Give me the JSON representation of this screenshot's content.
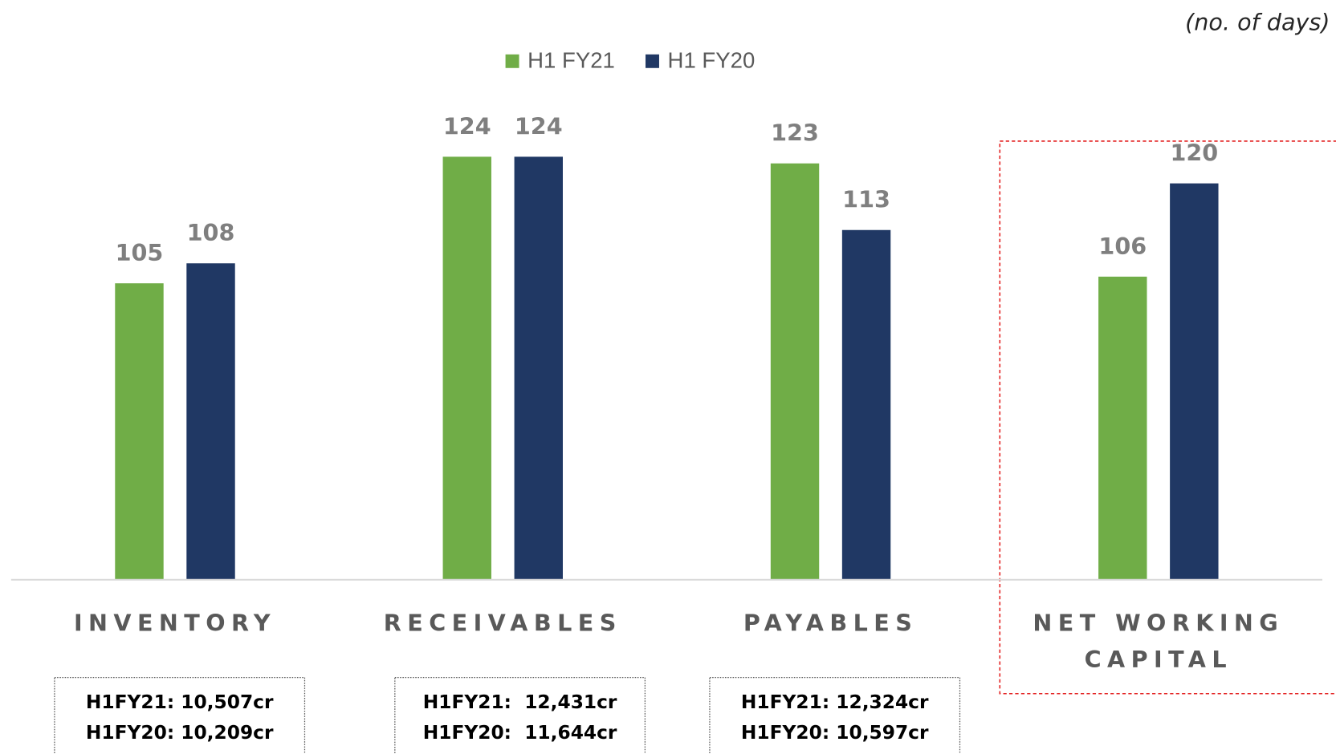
{
  "chart_data": {
    "type": "bar",
    "unit_note": "(no. of days)",
    "categories": [
      "INVENTORY",
      "RECEIVABLES",
      "PAYABLES",
      "NET WORKING CAPITAL"
    ],
    "series": [
      {
        "name": "H1 FY21",
        "color": "#70ad47",
        "values": [
          105,
          124,
          123,
          106
        ]
      },
      {
        "name": "H1 FY20",
        "color": "#203864",
        "values": [
          108,
          124,
          113,
          120
        ]
      }
    ],
    "ylim": [
      60.5,
      140
    ],
    "legend": "top",
    "notes": [
      [
        "H1FY21: 10,507cr",
        "H1FY20: 10,209cr"
      ],
      [
        "H1FY21:  12,431cr",
        "H1FY20:  11,644cr"
      ],
      [
        "H1FY21: 12,324cr",
        "H1FY20: 10,597cr"
      ]
    ]
  }
}
